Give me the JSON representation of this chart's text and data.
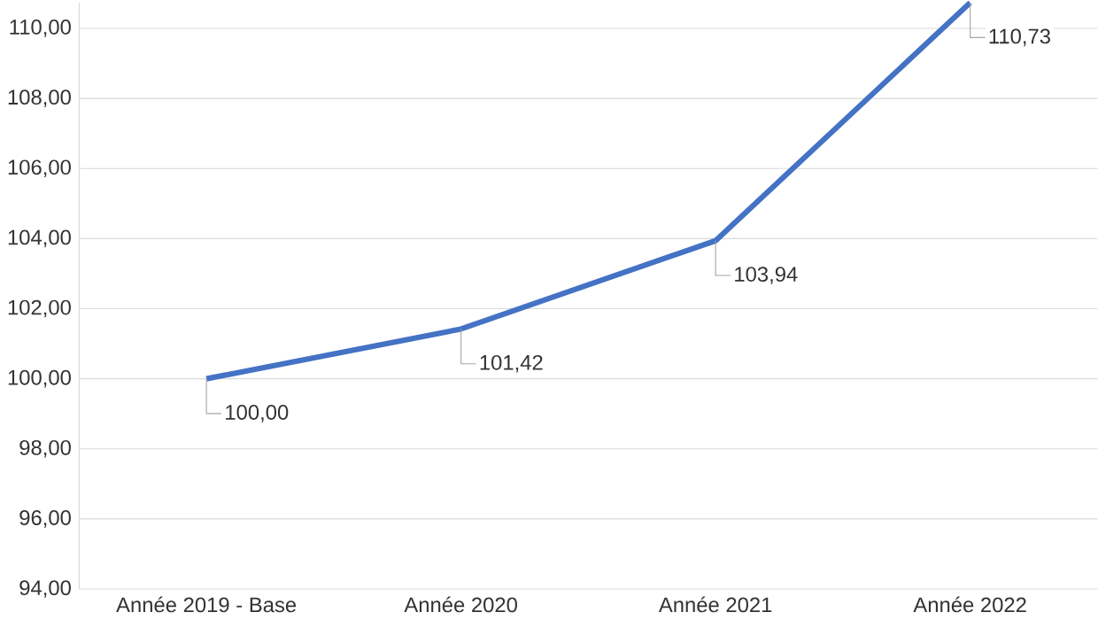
{
  "chart_data": {
    "type": "line",
    "categories": [
      "Année 2019 - Base",
      "Année 2020",
      "Année 2021",
      "Année 2022"
    ],
    "series": [
      {
        "color": "#4472c4",
        "values": [
          100.0,
          101.42,
          103.94,
          110.73
        ]
      }
    ],
    "value_labels": [
      "100,00",
      "101,42",
      "103,94",
      "110,73"
    ],
    "ylim": [
      94,
      110.73
    ],
    "yticks": [
      {
        "value": 94,
        "label": "94,00"
      },
      {
        "value": 96,
        "label": "96,00"
      },
      {
        "value": 98,
        "label": "98,00"
      },
      {
        "value": 100,
        "label": "100,00"
      },
      {
        "value": 102,
        "label": "102,00"
      },
      {
        "value": 104,
        "label": "104,00"
      },
      {
        "value": 106,
        "label": "106,00"
      },
      {
        "value": 108,
        "label": "108,00"
      },
      {
        "value": 110,
        "label": "110,00"
      }
    ],
    "grid": "y",
    "marker": "none",
    "line_style": "solid"
  }
}
